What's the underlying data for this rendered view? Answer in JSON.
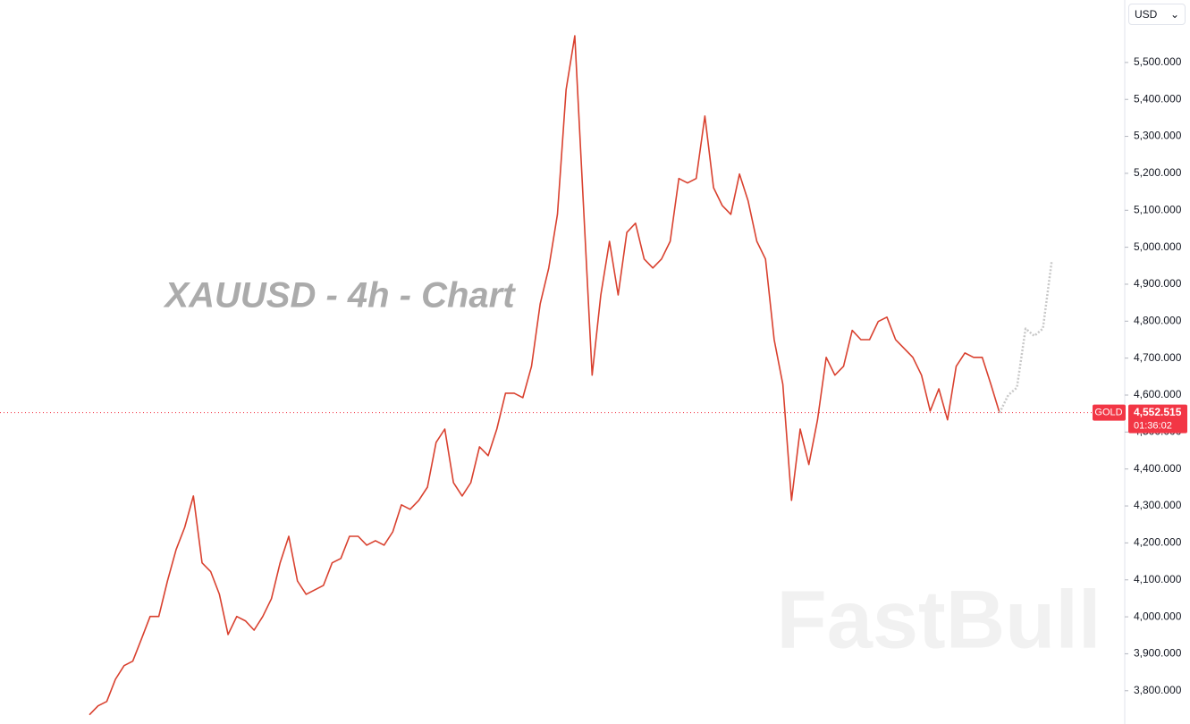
{
  "chart_data": {
    "type": "line",
    "title": "XAUUSD - 4h - Chart",
    "watermark": "FastBull",
    "currency": "USD",
    "series": [
      {
        "color": "#d9412f",
        "values": [
          3735,
          3759,
          3771,
          3831,
          3868,
          3880,
          3940,
          4001,
          4001,
          4097,
          4182,
          4242,
          4327,
          4146,
          4122,
          4061,
          3952,
          4001,
          3989,
          3964,
          4001,
          4049,
          4146,
          4218,
          4097,
          4061,
          4073,
          4085,
          4146,
          4158,
          4218,
          4218,
          4194,
          4206,
          4194,
          4230,
          4303,
          4291,
          4315,
          4351,
          4472,
          4508,
          4363,
          4327,
          4363,
          4460,
          4436,
          4508,
          4605,
          4605,
          4593,
          4678,
          4847,
          4944,
          5089,
          5427,
          5572,
          5113,
          4654,
          4871,
          5016,
          4871,
          5040,
          5065,
          4968,
          4944,
          4968,
          5016,
          5186,
          5174,
          5186,
          5355,
          5161,
          5113,
          5089,
          5198,
          5125,
          5016,
          4968,
          4750,
          4629,
          4315,
          4508,
          4412,
          4533,
          4702,
          4654,
          4678,
          4775,
          4750,
          4750,
          4799,
          4811,
          4750,
          4726,
          4702,
          4654,
          4557,
          4617,
          4533,
          4678,
          4714,
          4702,
          4702,
          4629,
          4552
        ]
      },
      {
        "color": "#c8c8c8",
        "values": [
          4552,
          4600,
          4620,
          4780,
          4760,
          4780,
          4960
        ]
      }
    ],
    "ylim": [
      3710,
      5669
    ],
    "yticks": [
      {
        "value": 3800,
        "label": "3,800.000"
      },
      {
        "value": 3900,
        "label": "3,900.000"
      },
      {
        "value": 4000,
        "label": "4,000.000"
      },
      {
        "value": 4100,
        "label": "4,100.000"
      },
      {
        "value": 4200,
        "label": "4,200.000"
      },
      {
        "value": 4300,
        "label": "4,300.000"
      },
      {
        "value": 4400,
        "label": "4,400.000"
      },
      {
        "value": 4500,
        "label": "4,500.000"
      },
      {
        "value": 4600,
        "label": "4,600.000"
      },
      {
        "value": 4700,
        "label": "4,700.000"
      },
      {
        "value": 4800,
        "label": "4,800.000"
      },
      {
        "value": 4900,
        "label": "4,900.000"
      },
      {
        "value": 5000,
        "label": "5,000.000"
      },
      {
        "value": 5100,
        "label": "5,100.000"
      },
      {
        "value": 5200,
        "label": "5,200.000"
      },
      {
        "value": 5300,
        "label": "5,300.000"
      },
      {
        "value": 5400,
        "label": "5,400.000"
      },
      {
        "value": 5500,
        "label": "5,500.000"
      }
    ],
    "price_line": {
      "symbol": "GOLD",
      "value": 4552.515,
      "label": "4,552.515",
      "countdown": "01:36:02",
      "color": "#f23645"
    }
  }
}
